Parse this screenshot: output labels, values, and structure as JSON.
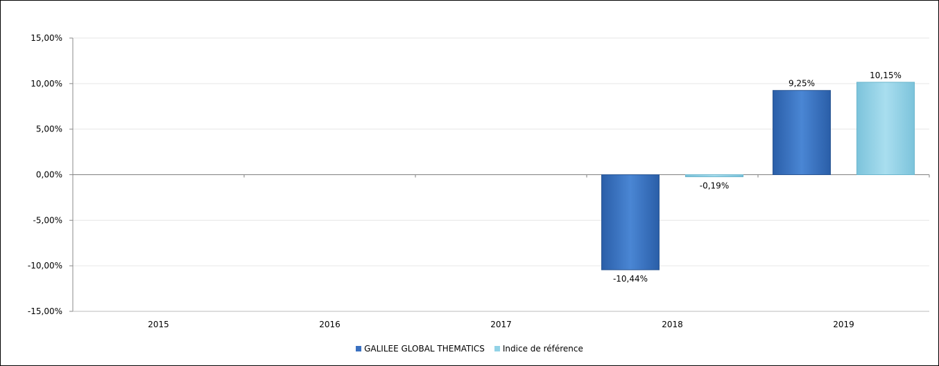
{
  "chart_data": {
    "type": "bar",
    "categories": [
      "2015",
      "2016",
      "2017",
      "2018",
      "2019"
    ],
    "series": [
      {
        "name": "GALILEE GLOBAL THEMATICS",
        "color": "#3A70C0",
        "values": [
          null,
          null,
          null,
          -10.44,
          9.25
        ],
        "labels": [
          "",
          "",
          "",
          "-10,44%",
          "9,25%"
        ]
      },
      {
        "name": "Indice de référence",
        "color": "#92D2E6",
        "values": [
          null,
          null,
          null,
          -0.19,
          10.15
        ],
        "labels": [
          "",
          "",
          "",
          "-0,19%",
          "10,15%"
        ]
      }
    ],
    "ylim": [
      -15,
      15
    ],
    "yticks": [
      15,
      10,
      5,
      0,
      -5,
      -10,
      -15
    ],
    "ytick_labels": [
      "15,00%",
      "10,00%",
      "5,00%",
      "0,00%",
      "-5,00%",
      "-10,00%",
      "-15,00%"
    ],
    "grid": true,
    "legend_position": "bottom"
  }
}
